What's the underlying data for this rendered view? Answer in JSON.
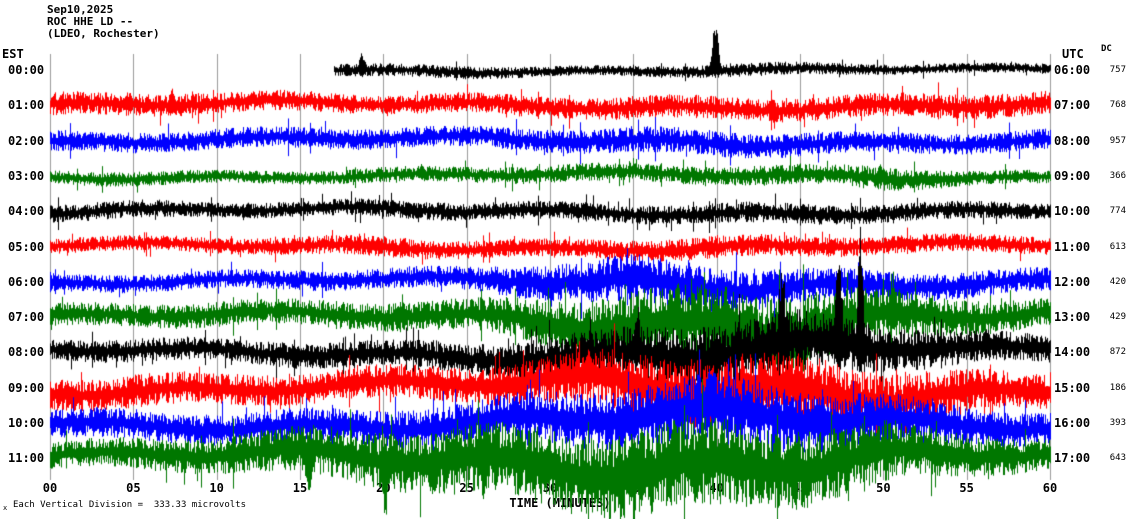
{
  "header": {
    "date": "Sep10,2025",
    "station": "ROC HHE LD --",
    "network": "(LDEO, Rochester)"
  },
  "axes": {
    "left_label": "EST",
    "right_label": "UTC",
    "dc_label": "DC",
    "scale_note": "Each Vertical Division =  333.33 microvolts",
    "scale_marker": "x"
  },
  "chart_data": {
    "type": "line",
    "title": "ROC HHE LD -- (LDEO, Rochester) Sep10,2025",
    "xlabel": "TIME (MINUTES)",
    "x_range": [
      0,
      60
    ],
    "x_ticks": [
      "00",
      "05",
      "10",
      "15",
      "20",
      "25",
      "30",
      "35",
      "40",
      "45",
      "50",
      "55",
      "60"
    ],
    "grid": "vertical-5min",
    "palette": {
      "black": "#000000",
      "red": "#ff0000",
      "blue": "#0000ff",
      "green": "#007700",
      "grid": "#9a9a9a"
    },
    "traces": [
      {
        "est": "00:00",
        "utc": "06:00",
        "dc": "757",
        "color": "#000000",
        "start_min": 17,
        "envelope": [
          4,
          4,
          4,
          5,
          5,
          5,
          4,
          4,
          5,
          5,
          4,
          4,
          4
        ],
        "spikes": [
          {
            "t": 18.7,
            "up": 20,
            "dn": 8
          },
          {
            "t": 39.9,
            "up": 60,
            "dn": 6
          }
        ]
      },
      {
        "est": "01:00",
        "utc": "07:00",
        "dc": "768",
        "color": "#ff0000",
        "start_min": 0,
        "envelope": [
          9,
          9,
          8,
          8,
          7,
          8,
          8,
          9,
          9,
          9,
          9,
          10,
          9
        ],
        "spikes": [
          {
            "t": 7.3,
            "up": 20,
            "dn": 10
          },
          {
            "t": 20.2,
            "up": 6,
            "dn": 14
          }
        ]
      },
      {
        "est": "02:00",
        "utc": "08:00",
        "dc": "957",
        "color": "#0000ff",
        "start_min": 0,
        "envelope": [
          8,
          8,
          8,
          8,
          8,
          8,
          9,
          10,
          10,
          9,
          8,
          8,
          8
        ],
        "spikes": []
      },
      {
        "est": "03:00",
        "utc": "09:00",
        "dc": "366",
        "color": "#007700",
        "start_min": 0,
        "envelope": [
          5,
          6,
          5,
          5,
          6,
          6,
          7,
          7,
          7,
          8,
          9,
          6,
          5
        ],
        "spikes": [
          {
            "t": 22.3,
            "up": 14,
            "dn": 4
          },
          {
            "t": 49.8,
            "up": 12,
            "dn": 10
          }
        ]
      },
      {
        "est": "04:00",
        "utc": "10:00",
        "dc": "774",
        "color": "#000000",
        "start_min": 0,
        "envelope": [
          7,
          7,
          6,
          6,
          7,
          7,
          7,
          7,
          8,
          8,
          7,
          7,
          6
        ],
        "spikes": [
          {
            "t": 22.1,
            "up": 6,
            "dn": 12
          }
        ]
      },
      {
        "est": "05:00",
        "utc": "11:00",
        "dc": "613",
        "color": "#ff0000",
        "start_min": 0,
        "envelope": [
          6,
          6,
          6,
          7,
          8,
          7,
          7,
          8,
          9,
          8,
          7,
          7,
          7
        ],
        "spikes": [
          {
            "t": 21.2,
            "up": 12,
            "dn": 14
          }
        ]
      },
      {
        "est": "06:00",
        "utc": "12:00",
        "dc": "420",
        "color": "#0000ff",
        "start_min": 0,
        "envelope": [
          7,
          7,
          7,
          8,
          8,
          9,
          14,
          19,
          17,
          13,
          12,
          10,
          9
        ],
        "spikes": [
          {
            "t": 38.3,
            "up": 26,
            "dn": 18
          }
        ]
      },
      {
        "est": "07:00",
        "utc": "13:00",
        "dc": "429",
        "color": "#007700",
        "start_min": 0,
        "envelope": [
          9,
          9,
          10,
          10,
          11,
          12,
          18,
          26,
          30,
          28,
          20,
          14,
          11
        ],
        "spikes": [
          {
            "t": 40.5,
            "up": 38,
            "dn": 30
          }
        ]
      },
      {
        "est": "08:00",
        "utc": "14:00",
        "dc": "872",
        "color": "#000000",
        "start_min": 0,
        "envelope": [
          8,
          9,
          9,
          10,
          10,
          12,
          16,
          22,
          26,
          24,
          18,
          13,
          10
        ],
        "spikes": [
          {
            "t": 35.2,
            "up": 60,
            "dn": 16
          },
          {
            "t": 43.9,
            "up": 120,
            "dn": 22
          },
          {
            "t": 47.3,
            "up": 150,
            "dn": 26
          },
          {
            "t": 48.6,
            "up": 140,
            "dn": 24
          }
        ]
      },
      {
        "est": "09:00",
        "utc": "15:00",
        "dc": "186",
        "color": "#ff0000",
        "start_min": 0,
        "envelope": [
          12,
          13,
          12,
          12,
          13,
          14,
          18,
          24,
          28,
          26,
          22,
          16,
          13
        ],
        "spikes": [
          {
            "t": 45.0,
            "up": 30,
            "dn": 30
          }
        ]
      },
      {
        "est": "10:00",
        "utc": "16:00",
        "dc": "393",
        "color": "#0000ff",
        "start_min": 0,
        "envelope": [
          11,
          12,
          12,
          13,
          14,
          16,
          20,
          24,
          26,
          24,
          20,
          15,
          12
        ],
        "spikes": []
      },
      {
        "est": "11:00",
        "utc": "17:00",
        "dc": "643",
        "color": "#007700",
        "start_min": 0,
        "envelope": [
          10,
          12,
          14,
          18,
          22,
          26,
          30,
          34,
          34,
          30,
          24,
          16,
          12
        ],
        "spikes": [
          {
            "t": 15.5,
            "up": 14,
            "dn": 45
          },
          {
            "t": 20.1,
            "up": 20,
            "dn": 70
          },
          {
            "t": 26.0,
            "up": 24,
            "dn": 60
          },
          {
            "t": 35.0,
            "up": 28,
            "dn": 80
          },
          {
            "t": 41.2,
            "up": 24,
            "dn": 55
          },
          {
            "t": 44.5,
            "up": 20,
            "dn": 62
          },
          {
            "t": 47.8,
            "up": 22,
            "dn": 58
          }
        ]
      }
    ]
  }
}
